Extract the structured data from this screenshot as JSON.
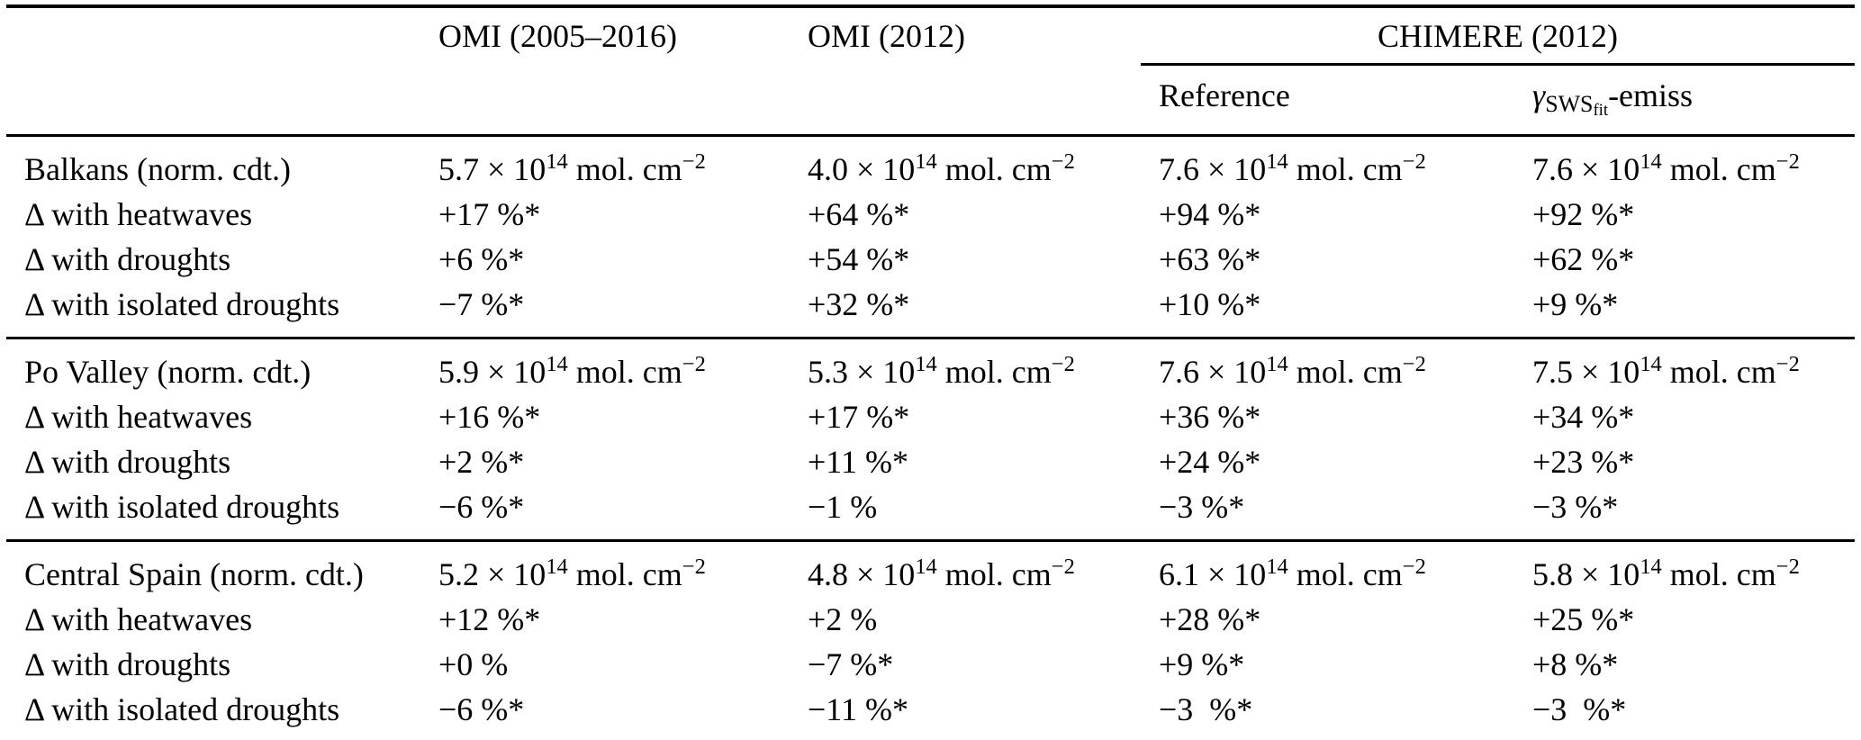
{
  "colors": {
    "text": "#000000",
    "background": "#ffffff",
    "rule": "#000000"
  },
  "table": {
    "col_headers": {
      "row_label_blank": "",
      "omi_long": "OMI (2005–2016)",
      "omi_2012": "OMI (2012)",
      "chimere": "CHIMERE (2012)",
      "reference": "Reference",
      "gamma_sws_emiss": "i{γ}_{SWS_{fit}}-emiss"
    },
    "groups": [
      {
        "region": "Balkans",
        "rows": [
          {
            "label": "Balkans (norm. cdt.)",
            "cells": [
              "5.7 × 10^{14} mol. cm^{−2}",
              "4.0 × 10^{14} mol. cm^{−2}",
              "7.6 × 10^{14} mol. cm^{−2}",
              "7.6 × 10^{14} mol. cm^{−2}"
            ]
          },
          {
            "label": "Δ with heatwaves",
            "cells": [
              "+17 %*",
              "+64 %*",
              "+94 %*",
              "+92 %*"
            ]
          },
          {
            "label": "Δ with droughts",
            "cells": [
              "+6 %*",
              "+54 %*",
              "+63 %*",
              "+62 %*"
            ]
          },
          {
            "label": "Δ with isolated droughts",
            "cells": [
              "−7 %*",
              "+32 %*",
              "+10 %*",
              "+9 %*"
            ]
          }
        ]
      },
      {
        "region": "Po Valley",
        "rows": [
          {
            "label": "Po Valley (norm. cdt.)",
            "cells": [
              "5.9 × 10^{14} mol. cm^{−2}",
              "5.3 × 10^{14} mol. cm^{−2}",
              "7.6 × 10^{14} mol. cm^{−2}",
              "7.5 × 10^{14} mol. cm^{−2}"
            ]
          },
          {
            "label": "Δ with heatwaves",
            "cells": [
              "+16 %*",
              "+17 %*",
              "+36 %*",
              "+34 %*"
            ]
          },
          {
            "label": "Δ with droughts",
            "cells": [
              "+2 %*",
              "+11 %*",
              "+24 %*",
              "+23 %*"
            ]
          },
          {
            "label": "Δ with isolated droughts",
            "cells": [
              "−6 %*",
              "−1 %",
              "−3 %*",
              "−3 %*"
            ]
          }
        ]
      },
      {
        "region": "Central Spain",
        "rows": [
          {
            "label": "Central Spain (norm. cdt.)",
            "cells": [
              "5.2 × 10^{14} mol. cm^{−2}",
              "4.8 × 10^{14} mol. cm^{−2}",
              "6.1 × 10^{14} mol. cm^{−2}",
              "5.8 × 10^{14} mol. cm^{−2}"
            ]
          },
          {
            "label": "Δ with heatwaves",
            "cells": [
              "+12 %*",
              "+2 %",
              "+28 %*",
              "+25 %*"
            ]
          },
          {
            "label": "Δ with droughts",
            "cells": [
              "+0 %",
              "−7 %*",
              "+9 %*",
              "+8 %*"
            ]
          },
          {
            "label": "Δ with isolated droughts",
            "cells": [
              "−6 %*",
              "−11 %*",
              "−3 %*",
              "−3 %*"
            ]
          }
        ]
      }
    ]
  }
}
